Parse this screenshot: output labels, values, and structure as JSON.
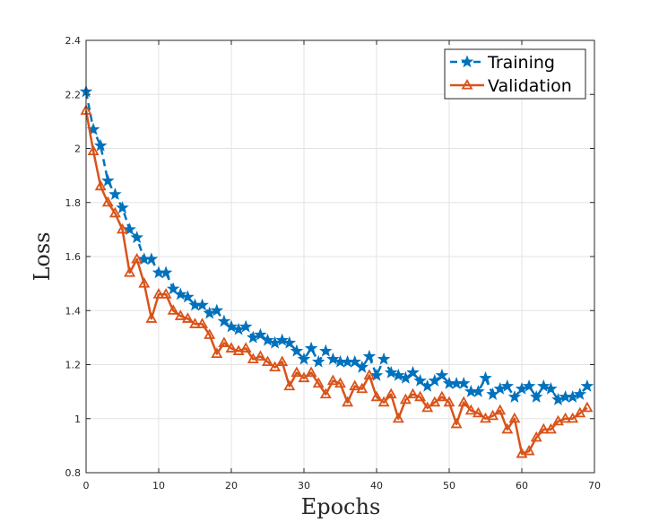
{
  "chart_data": {
    "type": "line",
    "title": "",
    "xlabel": "Epochs",
    "ylabel": "Loss",
    "xlim": [
      0,
      70
    ],
    "ylim": [
      0.8,
      2.4
    ],
    "xticks": [
      0,
      10,
      20,
      30,
      40,
      50,
      60,
      70
    ],
    "yticks": [
      0.8,
      1,
      1.2,
      1.4,
      1.6,
      1.8,
      2,
      2.2,
      2.4
    ],
    "xtick_labels": [
      "0",
      "10",
      "20",
      "30",
      "40",
      "50",
      "60",
      "70"
    ],
    "ytick_labels": [
      "0.8",
      "1",
      "1.2",
      "1.4",
      "1.6",
      "1.8",
      "2",
      "2.2",
      "2.4"
    ],
    "grid": true,
    "legend_position": "top-right",
    "x": [
      0,
      1,
      2,
      3,
      4,
      5,
      6,
      7,
      8,
      9,
      10,
      11,
      12,
      13,
      14,
      15,
      16,
      17,
      18,
      19,
      20,
      21,
      22,
      23,
      24,
      25,
      26,
      27,
      28,
      29,
      30,
      31,
      32,
      33,
      34,
      35,
      36,
      37,
      38,
      39,
      40,
      41,
      42,
      43,
      44,
      45,
      46,
      47,
      48,
      49,
      50,
      51,
      52,
      53,
      54,
      55,
      56,
      57,
      58,
      59,
      60,
      61,
      62,
      63,
      64,
      65,
      66,
      67,
      68,
      69
    ],
    "series": [
      {
        "name": "Training",
        "color": "#0072BD",
        "line_style": "dashed",
        "marker": "star",
        "values": [
          2.21,
          2.07,
          2.01,
          1.88,
          1.83,
          1.78,
          1.7,
          1.67,
          1.59,
          1.59,
          1.54,
          1.54,
          1.48,
          1.46,
          1.45,
          1.42,
          1.42,
          1.39,
          1.4,
          1.36,
          1.34,
          1.33,
          1.34,
          1.3,
          1.31,
          1.29,
          1.28,
          1.29,
          1.28,
          1.25,
          1.22,
          1.26,
          1.21,
          1.25,
          1.22,
          1.21,
          1.21,
          1.21,
          1.19,
          1.23,
          1.16,
          1.22,
          1.17,
          1.16,
          1.15,
          1.17,
          1.14,
          1.12,
          1.14,
          1.16,
          1.13,
          1.13,
          1.13,
          1.1,
          1.1,
          1.15,
          1.09,
          1.11,
          1.12,
          1.08,
          1.11,
          1.12,
          1.08,
          1.12,
          1.11,
          1.07,
          1.08,
          1.08,
          1.09,
          1.12
        ]
      },
      {
        "name": "Validation",
        "color": "#D95319",
        "line_style": "solid",
        "marker": "triangle",
        "values": [
          2.14,
          1.99,
          1.86,
          1.8,
          1.76,
          1.7,
          1.54,
          1.59,
          1.5,
          1.37,
          1.46,
          1.46,
          1.4,
          1.38,
          1.37,
          1.35,
          1.35,
          1.31,
          1.24,
          1.28,
          1.26,
          1.25,
          1.26,
          1.22,
          1.23,
          1.21,
          1.19,
          1.21,
          1.12,
          1.17,
          1.15,
          1.17,
          1.13,
          1.09,
          1.14,
          1.13,
          1.06,
          1.12,
          1.11,
          1.16,
          1.08,
          1.06,
          1.09,
          1.0,
          1.07,
          1.09,
          1.08,
          1.04,
          1.06,
          1.08,
          1.06,
          0.98,
          1.06,
          1.03,
          1.02,
          1.0,
          1.01,
          1.03,
          0.96,
          1.0,
          0.87,
          0.88,
          0.93,
          0.96,
          0.96,
          0.99,
          1.0,
          1.0,
          1.02,
          1.04
        ]
      }
    ]
  }
}
